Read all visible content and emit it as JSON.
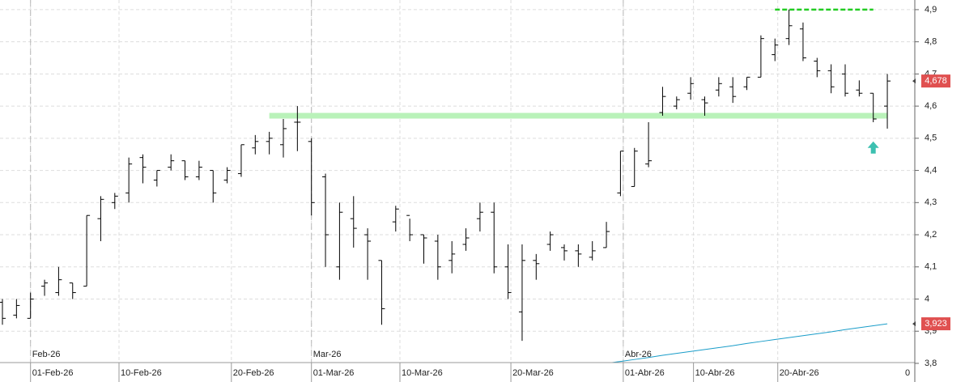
{
  "chart_data": {
    "type": "ohlc",
    "color": "#000000",
    "open": [
      3.99,
      3.95,
      3.94,
      4.04,
      4.02,
      4.05,
      4.04,
      4.25,
      4.3,
      4.33,
      4.44,
      4.37,
      4.41,
      4.43,
      4.38,
      4.4,
      4.37,
      4.39,
      4.47,
      4.49,
      4.48,
      4.55,
      4.49,
      4.38,
      4.1,
      4.25,
      4.2,
      4.12,
      4.24,
      4.26,
      4.2,
      4.18,
      4.12,
      4.17,
      4.25,
      4.27,
      4.1,
      3.96,
      4.12,
      4.17,
      4.16,
      4.15,
      4.13,
      4.16,
      4.33,
      4.35,
      4.42,
      4.58,
      4.6,
      4.64,
      4.62,
      4.65,
      4.66,
      4.66,
      4.69,
      4.76,
      4.81,
      4.84,
      4.74,
      4.71,
      4.7,
      4.65,
      4.64,
      4.6
    ],
    "high": [
      4.0,
      4.0,
      4.02,
      4.06,
      4.1,
      4.05,
      4.26,
      4.32,
      4.33,
      4.44,
      4.45,
      4.4,
      4.45,
      4.43,
      4.43,
      4.4,
      4.41,
      4.48,
      4.51,
      4.52,
      4.56,
      4.6,
      4.5,
      4.39,
      4.3,
      4.32,
      4.22,
      4.12,
      4.29,
      4.25,
      4.2,
      4.2,
      4.18,
      4.22,
      4.3,
      4.3,
      4.17,
      4.17,
      4.14,
      4.21,
      4.17,
      4.17,
      4.18,
      4.24,
      4.46,
      4.47,
      4.55,
      4.66,
      4.63,
      4.69,
      4.63,
      4.69,
      4.69,
      4.69,
      4.82,
      4.81,
      4.9,
      4.86,
      4.75,
      4.73,
      4.73,
      4.68,
      4.64,
      4.7
    ],
    "low": [
      3.92,
      3.94,
      3.94,
      4.01,
      4.01,
      4.0,
      4.04,
      4.18,
      4.28,
      4.3,
      4.36,
      4.35,
      4.4,
      4.37,
      4.37,
      4.3,
      4.36,
      4.38,
      4.45,
      4.45,
      4.44,
      4.46,
      4.26,
      4.1,
      4.06,
      4.16,
      4.06,
      3.92,
      4.21,
      4.18,
      4.11,
      4.06,
      4.08,
      4.15,
      4.21,
      4.08,
      4.0,
      3.87,
      4.06,
      4.15,
      4.12,
      4.1,
      4.12,
      4.16,
      4.32,
      4.35,
      4.41,
      4.57,
      4.59,
      4.62,
      4.57,
      4.63,
      4.61,
      4.65,
      4.69,
      4.74,
      4.79,
      4.74,
      4.69,
      4.64,
      4.63,
      4.63,
      4.55,
      4.53
    ],
    "close": [
      3.94,
      3.98,
      4.0,
      4.05,
      4.06,
      4.02,
      4.26,
      4.31,
      4.32,
      4.42,
      4.41,
      4.4,
      4.43,
      4.38,
      4.41,
      4.33,
      4.4,
      4.48,
      4.49,
      4.5,
      4.53,
      4.55,
      4.3,
      4.2,
      4.27,
      4.22,
      4.18,
      3.97,
      4.28,
      4.2,
      4.19,
      4.1,
      4.14,
      4.19,
      4.27,
      4.1,
      4.02,
      4.12,
      4.11,
      4.2,
      4.15,
      4.14,
      4.15,
      4.21,
      4.46,
      4.46,
      4.43,
      4.63,
      4.62,
      4.67,
      4.61,
      4.67,
      4.63,
      4.69,
      4.81,
      4.79,
      4.85,
      4.75,
      4.71,
      4.66,
      4.64,
      4.64,
      4.56,
      4.678
    ],
    "last_label": "4,678",
    "ma": {
      "color": "#1a9dc9",
      "values": [
        null,
        null,
        null,
        null,
        null,
        null,
        null,
        null,
        null,
        null,
        null,
        null,
        null,
        null,
        null,
        null,
        null,
        null,
        null,
        null,
        null,
        null,
        null,
        null,
        null,
        null,
        null,
        null,
        null,
        null,
        null,
        null,
        null,
        null,
        null,
        null,
        null,
        null,
        null,
        null,
        null,
        null,
        null,
        3.8,
        3.806,
        3.812,
        3.818,
        3.825,
        3.831,
        3.837,
        3.843,
        3.849,
        3.855,
        3.862,
        3.868,
        3.874,
        3.88,
        3.886,
        3.892,
        3.898,
        3.905,
        3.911,
        3.917,
        3.923
      ],
      "last_label": "3,923"
    },
    "support": {
      "value": 4.57,
      "start": 19,
      "end": 63,
      "color": "#b9f2b9"
    },
    "resistance": {
      "value": 4.9,
      "start": 55,
      "end": 62,
      "color": "#22cc22"
    },
    "signal": {
      "index": 62,
      "value": 4.47,
      "color": "#3cc0b0"
    },
    "label_color": "#e05050",
    "ylim": [
      3.742,
      4.93
    ],
    "yticks": [
      {
        "value": 3.8,
        "label": "3,8"
      },
      {
        "value": 3.9,
        "label": "3,9"
      },
      {
        "value": 4,
        "label": "4"
      },
      {
        "value": 4.1,
        "label": "4,1"
      },
      {
        "value": 4.2,
        "label": "4,2"
      },
      {
        "value": 4.3,
        "label": "4,3"
      },
      {
        "value": 4.4,
        "label": "4,4"
      },
      {
        "value": 4.5,
        "label": "4,5"
      },
      {
        "value": 4.6,
        "label": "4,6"
      },
      {
        "value": 4.7,
        "label": "4,7"
      },
      {
        "value": 4.8,
        "label": "4,8"
      },
      {
        "value": 4.9,
        "label": "4,9"
      }
    ],
    "xticks": [
      {
        "value": 2,
        "label": "01-Feb-26"
      },
      {
        "value": 8.3,
        "label": "10-Feb-26"
      },
      {
        "value": 16.3,
        "label": "20-Feb-26"
      },
      {
        "value": 22,
        "label": "01-Mar-26"
      },
      {
        "value": 28.3,
        "label": "10-Mar-26"
      },
      {
        "value": 36.2,
        "label": "20-Mar-26"
      },
      {
        "value": 44.2,
        "label": "01-Abr-26"
      },
      {
        "value": 49.2,
        "label": "10-Abr-26"
      },
      {
        "value": 55.2,
        "label": "20-Abr-26"
      }
    ],
    "month_markers": [
      {
        "value": 2,
        "label": "Feb-26"
      },
      {
        "value": 22,
        "label": "Mar-26"
      },
      {
        "value": 44.2,
        "label": "Abr-26"
      }
    ],
    "corner_label": "0",
    "grid": true
  }
}
